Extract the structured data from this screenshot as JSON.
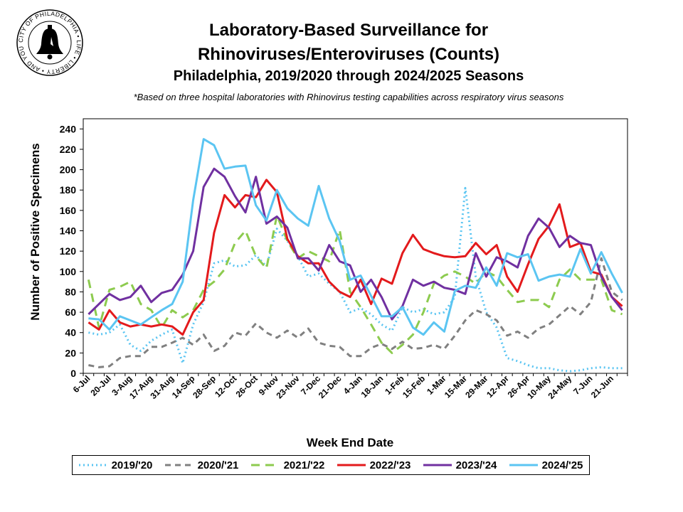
{
  "logo": {
    "ring_text": "CITY OF PHILADELPHIA • LIFE • LIBERTY • AND YOU"
  },
  "chart_data": {
    "type": "line",
    "title": "Laboratory-Based Surveillance for",
    "title_line2": "Rhinoviruses/Enteroviruses (Counts)",
    "subtitle": "Philadelphia, 2019/2020 through 2024/2025 Seasons",
    "note": "*Based on three hospital laboratories with Rhinovirus testing capabilities across respiratory virus seasons",
    "xlabel": "Week End Date",
    "ylabel": "Number of Positive Specimens",
    "ylim": [
      0,
      250
    ],
    "yticks": [
      0,
      20,
      40,
      60,
      80,
      100,
      120,
      140,
      160,
      180,
      200,
      220,
      240
    ],
    "grid": false,
    "legend_position": "bottom",
    "categories": [
      "6-Jul",
      "13-Jul",
      "20-Jul",
      "27-Jul",
      "3-Aug",
      "10-Aug",
      "17-Aug",
      "24-Aug",
      "31-Aug",
      "7-Sep",
      "14-Sep",
      "21-Sep",
      "28-Sep",
      "5-Oct",
      "12-Oct",
      "19-Oct",
      "26-Oct",
      "2-Nov",
      "9-Nov",
      "16-Nov",
      "23-Nov",
      "30-Nov",
      "7-Dec",
      "14-Dec",
      "21-Dec",
      "28-Dec",
      "4-Jan",
      "11-Jan",
      "18-Jan",
      "25-Jan",
      "1-Feb",
      "8-Feb",
      "15-Feb",
      "22-Feb",
      "1-Mar",
      "8-Mar",
      "15-Mar",
      "22-Mar",
      "29-Mar",
      "5-Apr",
      "12-Apr",
      "19-Apr",
      "26-Apr",
      "3-May",
      "10-May",
      "17-May",
      "24-May",
      "31-May",
      "7-Jun",
      "14-Jun",
      "21-Jun",
      "28-Jun"
    ],
    "tick_labels": [
      "6-Jul",
      "20-Jul",
      "3-Aug",
      "17-Aug",
      "31-Aug",
      "14-Sep",
      "28-Sep",
      "12-Oct",
      "26-Oct",
      "9-Nov",
      "23-Nov",
      "7-Dec",
      "21-Dec",
      "4-Jan",
      "18-Jan",
      "1-Feb",
      "15-Feb",
      "1-Mar",
      "15-Mar",
      "29-Mar",
      "12-Apr",
      "26-Apr",
      "10-May",
      "24-May",
      "7-Jun",
      "21-Jun"
    ],
    "series": [
      {
        "name": "2019/'20",
        "color": "#5BC5F2",
        "dash": "2,4",
        "values": [
          40,
          38,
          40,
          48,
          28,
          22,
          32,
          38,
          43,
          10,
          48,
          70,
          108,
          111,
          105,
          106,
          116,
          105,
          142,
          130,
          115,
          95,
          98,
          88,
          80,
          60,
          64,
          58,
          48,
          42,
          65,
          60,
          63,
          58,
          60,
          75,
          182,
          95,
          60,
          45,
          15,
          12,
          8,
          5,
          5,
          3,
          2,
          3,
          5,
          6,
          5,
          5
        ]
      },
      {
        "name": "2020/'21",
        "color": "#808080",
        "dash": "8,6",
        "values": [
          8,
          6,
          7,
          15,
          17,
          17,
          26,
          26,
          30,
          35,
          28,
          38,
          22,
          27,
          40,
          37,
          49,
          40,
          35,
          42,
          35,
          44,
          30,
          27,
          26,
          17,
          17,
          25,
          29,
          24,
          31,
          24,
          25,
          28,
          24,
          37,
          52,
          62,
          58,
          52,
          37,
          41,
          35,
          44,
          48,
          57,
          66,
          58,
          70,
          113,
          80,
          72
        ]
      },
      {
        "name": "2021/'22",
        "color": "#8DCB4F",
        "dash": "12,8",
        "values": [
          92,
          45,
          82,
          85,
          90,
          68,
          62,
          45,
          62,
          55,
          62,
          82,
          90,
          102,
          128,
          140,
          115,
          103,
          155,
          130,
          113,
          120,
          115,
          110,
          141,
          80,
          65,
          48,
          30,
          20,
          28,
          38,
          60,
          88,
          96,
          100,
          95,
          88,
          100,
          95,
          82,
          70,
          72,
          72,
          65,
          92,
          102,
          92,
          92,
          92,
          62,
          58
        ]
      },
      {
        "name": "2022/'23",
        "color": "#E31A1C",
        "dash": "",
        "values": [
          50,
          43,
          62,
          50,
          46,
          48,
          46,
          48,
          46,
          38,
          60,
          72,
          138,
          175,
          163,
          175,
          173,
          190,
          178,
          132,
          115,
          108,
          108,
          90,
          80,
          75,
          92,
          68,
          93,
          88,
          118,
          136,
          122,
          118,
          115,
          114,
          115,
          128,
          117,
          126,
          95,
          80,
          107,
          132,
          145,
          166,
          124,
          128,
          100,
          97,
          75,
          66
        ]
      },
      {
        "name": "2023/'24",
        "color": "#7030A0",
        "dash": "",
        "values": [
          58,
          68,
          78,
          72,
          75,
          86,
          70,
          79,
          82,
          97,
          120,
          183,
          201,
          193,
          174,
          158,
          193,
          147,
          154,
          143,
          113,
          113,
          101,
          126,
          110,
          106,
          80,
          92,
          75,
          53,
          66,
          92,
          86,
          90,
          84,
          82,
          78,
          118,
          95,
          114,
          110,
          104,
          135,
          152,
          143,
          124,
          135,
          128,
          126,
          95,
          75,
          62
        ]
      },
      {
        "name": "2024/'25",
        "color": "#5BC5F2",
        "dash": "",
        "values": [
          54,
          53,
          43,
          56,
          52,
          48,
          55,
          62,
          68,
          90,
          170,
          230,
          224,
          201,
          203,
          204,
          165,
          150,
          180,
          162,
          152,
          145,
          184,
          152,
          130,
          92,
          96,
          76,
          56,
          56,
          65,
          45,
          38,
          50,
          41,
          81,
          86,
          84,
          104,
          86,
          118,
          114,
          117,
          91,
          95,
          97,
          95,
          122,
          98,
          119,
          98,
          79
        ]
      }
    ]
  }
}
